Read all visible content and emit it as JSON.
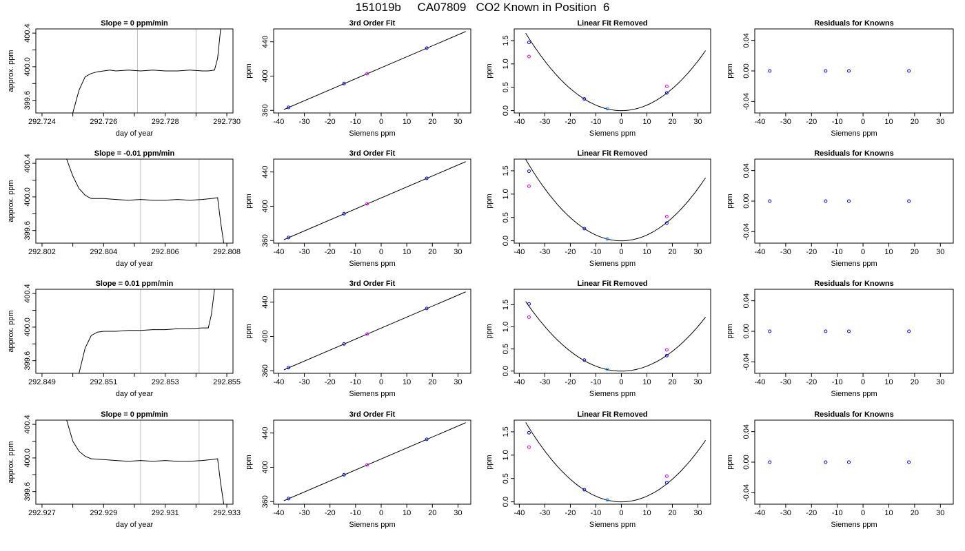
{
  "title": "151019b     CA07809   CO2 Known in Position  6",
  "colors": {
    "trace": "#000000",
    "fit": "#000000",
    "window": "#bebebe",
    "point_blue": "#0000ff",
    "point_magenta": "#ee00ee",
    "point_cyan": "#1e90ff"
  },
  "chart_data": [
    {
      "type": "line",
      "title": "Slope =  0  ppm/min",
      "xlabel": "day of year",
      "ylabel": "approx. ppm",
      "xlim": [
        292.7238,
        292.7302
      ],
      "ylim": [
        399.45,
        400.45
      ],
      "xticks": [
        "292.724",
        "292.726",
        "292.728",
        "292.730"
      ],
      "xtick_values": [
        292.724,
        292.726,
        292.728,
        292.73
      ],
      "yticks": [
        "399.6",
        "400.0",
        "400.4"
      ],
      "ytick_values": [
        399.6,
        400.0,
        400.4
      ],
      "window": [
        292.7271,
        292.729
      ],
      "x": [
        292.725,
        292.7252,
        292.7254,
        292.7256,
        292.7258,
        292.726,
        292.7262,
        292.7264,
        292.7268,
        292.7272,
        292.7276,
        292.728,
        292.7284,
        292.7288,
        292.7292,
        292.7294,
        292.7296,
        292.7297,
        292.7298
      ],
      "y": [
        399.45,
        399.72,
        399.88,
        399.92,
        399.94,
        399.95,
        399.96,
        399.95,
        399.96,
        399.95,
        399.96,
        399.95,
        399.95,
        399.96,
        399.95,
        399.95,
        399.96,
        400.1,
        400.45
      ]
    },
    {
      "type": "line",
      "title": "3rd Order Fit",
      "xlabel": "Siemens ppm",
      "ylabel": "ppm",
      "xlim": [
        -42,
        35
      ],
      "ylim": [
        357,
        455
      ],
      "xticks": [
        "-40",
        "-30",
        "-20",
        "-10",
        "0",
        "10",
        "20",
        "30"
      ],
      "xtick_values": [
        -40,
        -30,
        -20,
        -10,
        0,
        10,
        20,
        30
      ],
      "yticks": [
        "360",
        "400",
        "440"
      ],
      "ytick_values": [
        360,
        400,
        440
      ],
      "curve": [
        [
          -38,
          361
        ],
        [
          33,
          452
        ]
      ],
      "points": [
        {
          "x": -36.2,
          "y": 363.5,
          "color": "point_blue"
        },
        {
          "x": -14.5,
          "y": 391.3,
          "color": "point_blue"
        },
        {
          "x": -5.5,
          "y": 402.8,
          "color": "point_magenta"
        },
        {
          "x": 17.8,
          "y": 432.6,
          "color": "point_blue"
        }
      ]
    },
    {
      "type": "line",
      "title": "Linear Fit Removed",
      "xlabel": "Siemens ppm",
      "ylabel": "ppm",
      "xlim": [
        -42,
        35
      ],
      "ylim": [
        -0.05,
        1.75
      ],
      "xticks": [
        "-40",
        "-30",
        "-20",
        "-10",
        "0",
        "10",
        "20",
        "30"
      ],
      "xtick_values": [
        -40,
        -30,
        -20,
        -10,
        0,
        10,
        20,
        30
      ],
      "yticks": [
        "0.0",
        "0.5",
        "1.0",
        "1.5"
      ],
      "ytick_values": [
        0,
        0.5,
        1.0,
        1.5
      ],
      "quad": [
        0.00118,
        0.0
      ],
      "curve_xlim": [
        -37.5,
        33
      ],
      "points": [
        {
          "x": -36.2,
          "y": 1.46,
          "color": "point_blue"
        },
        {
          "x": -36.2,
          "y": 1.16,
          "color": "point_magenta"
        },
        {
          "x": -14.5,
          "y": 0.25,
          "color": "point_blue"
        },
        {
          "x": -5.5,
          "y": 0.04,
          "color": "point_cyan"
        },
        {
          "x": 17.8,
          "y": 0.38,
          "color": "point_blue"
        },
        {
          "x": 17.8,
          "y": 0.52,
          "color": "point_magenta"
        }
      ]
    },
    {
      "type": "scatter",
      "title": "Residuals for Knowns",
      "xlabel": "Siemens ppm",
      "ylabel": "ppm",
      "xlim": [
        -42,
        35
      ],
      "ylim": [
        -0.055,
        0.055
      ],
      "xticks": [
        "-40",
        "-30",
        "-20",
        "-10",
        "0",
        "10",
        "20",
        "30"
      ],
      "xtick_values": [
        -40,
        -30,
        -20,
        -10,
        0,
        10,
        20,
        30
      ],
      "yticks": [
        "-0.04",
        "0.00",
        "0.04"
      ],
      "ytick_values": [
        -0.04,
        0,
        0.04
      ],
      "points": [
        {
          "x": -36.2,
          "y": 0,
          "color": "point_blue"
        },
        {
          "x": -14.5,
          "y": 0,
          "color": "point_blue"
        },
        {
          "x": -5.5,
          "y": 0,
          "color": "point_blue"
        },
        {
          "x": 17.8,
          "y": 0,
          "color": "point_blue"
        }
      ]
    },
    {
      "type": "line",
      "title": "Slope =  -0.01  ppm/min",
      "xlabel": "day of year",
      "ylabel": "approx. ppm",
      "xlim": [
        292.8018,
        292.8082
      ],
      "ylim": [
        399.45,
        400.45
      ],
      "xticks": [
        "292.802",
        "292.804",
        "292.806",
        "292.808"
      ],
      "xtick_values": [
        292.802,
        292.804,
        292.806,
        292.808
      ],
      "yticks": [
        "399.6",
        "400.0",
        "400.4"
      ],
      "ytick_values": [
        399.6,
        400.0,
        400.4
      ],
      "window": [
        292.8052,
        292.8071
      ],
      "x": [
        292.8028,
        292.803,
        292.8032,
        292.8034,
        292.8036,
        292.804,
        292.8044,
        292.8048,
        292.8052,
        292.8056,
        292.806,
        292.8064,
        292.8068,
        292.8072,
        292.8075,
        292.8077,
        292.8078,
        292.8079
      ],
      "y": [
        400.45,
        400.25,
        400.1,
        400.02,
        399.98,
        399.98,
        399.97,
        399.96,
        399.97,
        399.96,
        399.96,
        399.97,
        399.96,
        399.97,
        399.98,
        399.99,
        399.7,
        399.45
      ]
    },
    {
      "type": "line",
      "title": "3rd Order Fit",
      "xlabel": "Siemens ppm",
      "ylabel": "ppm",
      "xlim": [
        -42,
        35
      ],
      "ylim": [
        357,
        455
      ],
      "xticks": [
        "-40",
        "-30",
        "-20",
        "-10",
        "0",
        "10",
        "20",
        "30"
      ],
      "xtick_values": [
        -40,
        -30,
        -20,
        -10,
        0,
        10,
        20,
        30
      ],
      "yticks": [
        "360",
        "400",
        "440"
      ],
      "ytick_values": [
        360,
        400,
        440
      ],
      "curve": [
        [
          -38,
          361
        ],
        [
          33,
          452
        ]
      ],
      "points": [
        {
          "x": -36.2,
          "y": 363.5,
          "color": "point_blue"
        },
        {
          "x": -14.5,
          "y": 391.3,
          "color": "point_blue"
        },
        {
          "x": -5.5,
          "y": 402.8,
          "color": "point_magenta"
        },
        {
          "x": 17.8,
          "y": 432.6,
          "color": "point_blue"
        }
      ]
    },
    {
      "type": "line",
      "title": "Linear Fit Removed",
      "xlabel": "Siemens ppm",
      "ylabel": "ppm",
      "xlim": [
        -42,
        35
      ],
      "ylim": [
        -0.05,
        1.75
      ],
      "xticks": [
        "-40",
        "-30",
        "-20",
        "-10",
        "0",
        "10",
        "20",
        "30"
      ],
      "xtick_values": [
        -40,
        -30,
        -20,
        -10,
        0,
        10,
        20,
        30
      ],
      "yticks": [
        "0.0",
        "0.5",
        "1.0",
        "1.5"
      ],
      "ytick_values": [
        0,
        0.5,
        1.0,
        1.5
      ],
      "quad": [
        0.00124,
        0.0
      ],
      "curve_xlim": [
        -37.5,
        33
      ],
      "points": [
        {
          "x": -36.2,
          "y": 1.49,
          "color": "point_blue"
        },
        {
          "x": -36.2,
          "y": 1.17,
          "color": "point_magenta"
        },
        {
          "x": -14.5,
          "y": 0.26,
          "color": "point_blue"
        },
        {
          "x": -5.5,
          "y": 0.04,
          "color": "point_cyan"
        },
        {
          "x": 17.8,
          "y": 0.38,
          "color": "point_blue"
        },
        {
          "x": 17.8,
          "y": 0.52,
          "color": "point_magenta"
        }
      ]
    },
    {
      "type": "scatter",
      "title": "Residuals for Knowns",
      "xlabel": "Siemens ppm",
      "ylabel": "ppm",
      "xlim": [
        -42,
        35
      ],
      "ylim": [
        -0.055,
        0.055
      ],
      "xticks": [
        "-40",
        "-30",
        "-20",
        "-10",
        "0",
        "10",
        "20",
        "30"
      ],
      "xtick_values": [
        -40,
        -30,
        -20,
        -10,
        0,
        10,
        20,
        30
      ],
      "yticks": [
        "-0.04",
        "0.00",
        "0.04"
      ],
      "ytick_values": [
        -0.04,
        0,
        0.04
      ],
      "points": [
        {
          "x": -36.2,
          "y": 0,
          "color": "point_blue"
        },
        {
          "x": -14.5,
          "y": 0,
          "color": "point_blue"
        },
        {
          "x": -5.5,
          "y": 0,
          "color": "point_blue"
        },
        {
          "x": 17.8,
          "y": 0,
          "color": "point_blue"
        }
      ]
    },
    {
      "type": "line",
      "title": "Slope =  0.01  ppm/min",
      "xlabel": "day of year",
      "ylabel": "approx. ppm",
      "xlim": [
        292.8488,
        292.8552
      ],
      "ylim": [
        399.45,
        400.45
      ],
      "xticks": [
        "292.849",
        "292.851",
        "292.853",
        "292.855"
      ],
      "xtick_values": [
        292.849,
        292.851,
        292.853,
        292.855
      ],
      "yticks": [
        "399.6",
        "400.0",
        "400.4"
      ],
      "ytick_values": [
        399.6,
        400.0,
        400.4
      ],
      "window": [
        292.8522,
        292.8541
      ],
      "x": [
        292.8502,
        292.8504,
        292.8506,
        292.8508,
        292.851,
        292.8514,
        292.8518,
        292.8522,
        292.8526,
        292.853,
        292.8534,
        292.8538,
        292.8542,
        292.8544,
        292.8545,
        292.8546
      ],
      "y": [
        399.45,
        399.75,
        399.9,
        399.94,
        399.95,
        399.95,
        399.96,
        399.96,
        399.97,
        399.97,
        399.98,
        399.98,
        399.99,
        399.99,
        400.15,
        400.45
      ]
    },
    {
      "type": "line",
      "title": "3rd Order Fit",
      "xlabel": "Siemens ppm",
      "ylabel": "ppm",
      "xlim": [
        -42,
        35
      ],
      "ylim": [
        357,
        455
      ],
      "xticks": [
        "-40",
        "-30",
        "-20",
        "-10",
        "0",
        "10",
        "20",
        "30"
      ],
      "xtick_values": [
        -40,
        -30,
        -20,
        -10,
        0,
        10,
        20,
        30
      ],
      "yticks": [
        "360",
        "400",
        "440"
      ],
      "ytick_values": [
        360,
        400,
        440
      ],
      "curve": [
        [
          -38,
          361
        ],
        [
          33,
          452
        ]
      ],
      "points": [
        {
          "x": -36.2,
          "y": 363.5,
          "color": "point_blue"
        },
        {
          "x": -14.5,
          "y": 391.3,
          "color": "point_blue"
        },
        {
          "x": -5.5,
          "y": 402.8,
          "color": "point_magenta"
        },
        {
          "x": 17.8,
          "y": 432.6,
          "color": "point_blue"
        }
      ]
    },
    {
      "type": "line",
      "title": "Linear Fit Removed",
      "xlabel": "Siemens ppm",
      "ylabel": "ppm",
      "xlim": [
        -42,
        35
      ],
      "ylim": [
        -0.05,
        1.85
      ],
      "xticks": [
        "-40",
        "-30",
        "-20",
        "-10",
        "0",
        "10",
        "20",
        "30"
      ],
      "xtick_values": [
        -40,
        -30,
        -20,
        -10,
        0,
        10,
        20,
        30
      ],
      "yticks": [
        "0.0",
        "0.5",
        "1.0",
        "1.5"
      ],
      "ytick_values": [
        0,
        0.5,
        1.0,
        1.5
      ],
      "quad": [
        0.00112,
        0.0
      ],
      "curve_xlim": [
        -37.5,
        33
      ],
      "points": [
        {
          "x": -36.2,
          "y": 1.52,
          "color": "point_blue"
        },
        {
          "x": -36.2,
          "y": 1.22,
          "color": "point_magenta"
        },
        {
          "x": -14.5,
          "y": 0.25,
          "color": "point_blue"
        },
        {
          "x": -5.5,
          "y": 0.04,
          "color": "point_cyan"
        },
        {
          "x": 17.8,
          "y": 0.35,
          "color": "point_blue"
        },
        {
          "x": 17.8,
          "y": 0.48,
          "color": "point_magenta"
        }
      ]
    },
    {
      "type": "scatter",
      "title": "Residuals for Knowns",
      "xlabel": "Siemens ppm",
      "ylabel": "ppm",
      "xlim": [
        -42,
        35
      ],
      "ylim": [
        -0.055,
        0.055
      ],
      "xticks": [
        "-40",
        "-30",
        "-20",
        "-10",
        "0",
        "10",
        "20",
        "30"
      ],
      "xtick_values": [
        -40,
        -30,
        -20,
        -10,
        0,
        10,
        20,
        30
      ],
      "yticks": [
        "-0.04",
        "0.00",
        "0.04"
      ],
      "ytick_values": [
        -0.04,
        0,
        0.04
      ],
      "points": [
        {
          "x": -36.2,
          "y": 0,
          "color": "point_blue"
        },
        {
          "x": -14.5,
          "y": 0,
          "color": "point_blue"
        },
        {
          "x": -5.5,
          "y": 0,
          "color": "point_blue"
        },
        {
          "x": 17.8,
          "y": 0,
          "color": "point_blue"
        }
      ]
    },
    {
      "type": "line",
      "title": "Slope =  0  ppm/min",
      "xlabel": "day of year",
      "ylabel": "approx. ppm",
      "xlim": [
        292.9268,
        292.9332
      ],
      "ylim": [
        399.45,
        400.45
      ],
      "xticks": [
        "292.927",
        "292.929",
        "292.931",
        "292.933"
      ],
      "xtick_values": [
        292.927,
        292.929,
        292.931,
        292.933
      ],
      "yticks": [
        "399.6",
        "400.0",
        "400.4"
      ],
      "ytick_values": [
        399.6,
        400.0,
        400.4
      ],
      "window": [
        292.9302,
        292.9321
      ],
      "x": [
        292.9278,
        292.928,
        292.9282,
        292.9284,
        292.9286,
        292.929,
        292.9294,
        292.9298,
        292.9302,
        292.9306,
        292.931,
        292.9314,
        292.9318,
        292.9322,
        292.9325,
        292.9327,
        292.9328,
        292.9329
      ],
      "y": [
        400.45,
        400.2,
        400.08,
        400.02,
        399.99,
        399.98,
        399.97,
        399.96,
        399.97,
        399.96,
        399.97,
        399.96,
        399.96,
        399.97,
        399.98,
        399.99,
        399.7,
        399.45
      ]
    },
    {
      "type": "line",
      "title": "3rd Order Fit",
      "xlabel": "Siemens ppm",
      "ylabel": "ppm",
      "xlim": [
        -42,
        35
      ],
      "ylim": [
        357,
        455
      ],
      "xticks": [
        "-40",
        "-30",
        "-20",
        "-10",
        "0",
        "10",
        "20",
        "30"
      ],
      "xtick_values": [
        -40,
        -30,
        -20,
        -10,
        0,
        10,
        20,
        30
      ],
      "yticks": [
        "360",
        "400",
        "440"
      ],
      "ytick_values": [
        360,
        400,
        440
      ],
      "curve": [
        [
          -38,
          361
        ],
        [
          33,
          452
        ]
      ],
      "points": [
        {
          "x": -36.2,
          "y": 363.5,
          "color": "point_blue"
        },
        {
          "x": -14.5,
          "y": 391.3,
          "color": "point_blue"
        },
        {
          "x": -5.5,
          "y": 402.8,
          "color": "point_magenta"
        },
        {
          "x": 17.8,
          "y": 432.6,
          "color": "point_blue"
        }
      ]
    },
    {
      "type": "line",
      "title": "Linear Fit Removed",
      "xlabel": "Siemens ppm",
      "ylabel": "ppm",
      "xlim": [
        -42,
        35
      ],
      "ylim": [
        -0.05,
        1.75
      ],
      "xticks": [
        "-40",
        "-30",
        "-20",
        "-10",
        "0",
        "10",
        "20",
        "30"
      ],
      "xtick_values": [
        -40,
        -30,
        -20,
        -10,
        0,
        10,
        20,
        30
      ],
      "yticks": [
        "0.0",
        "0.5",
        "1.0",
        "1.5"
      ],
      "ytick_values": [
        0,
        0.5,
        1.0,
        1.5
      ],
      "quad": [
        0.00121,
        0.0
      ],
      "curve_xlim": [
        -37.5,
        33
      ],
      "points": [
        {
          "x": -36.2,
          "y": 1.48,
          "color": "point_blue"
        },
        {
          "x": -36.2,
          "y": 1.17,
          "color": "point_magenta"
        },
        {
          "x": -14.5,
          "y": 0.26,
          "color": "point_blue"
        },
        {
          "x": -5.5,
          "y": 0.04,
          "color": "point_cyan"
        },
        {
          "x": 17.8,
          "y": 0.41,
          "color": "point_blue"
        },
        {
          "x": 17.8,
          "y": 0.55,
          "color": "point_magenta"
        }
      ]
    },
    {
      "type": "scatter",
      "title": "Residuals for Knowns",
      "xlabel": "Siemens ppm",
      "ylabel": "ppm",
      "xlim": [
        -42,
        35
      ],
      "ylim": [
        -0.055,
        0.055
      ],
      "xticks": [
        "-40",
        "-30",
        "-20",
        "-10",
        "0",
        "10",
        "20",
        "30"
      ],
      "xtick_values": [
        -40,
        -30,
        -20,
        -10,
        0,
        10,
        20,
        30
      ],
      "yticks": [
        "-0.04",
        "0.00",
        "0.04"
      ],
      "ytick_values": [
        -0.04,
        0,
        0.04
      ],
      "points": [
        {
          "x": -36.2,
          "y": 0,
          "color": "point_blue"
        },
        {
          "x": -14.5,
          "y": 0,
          "color": "point_blue"
        },
        {
          "x": -5.5,
          "y": 0,
          "color": "point_blue"
        },
        {
          "x": 17.8,
          "y": 0,
          "color": "point_blue"
        }
      ]
    }
  ]
}
